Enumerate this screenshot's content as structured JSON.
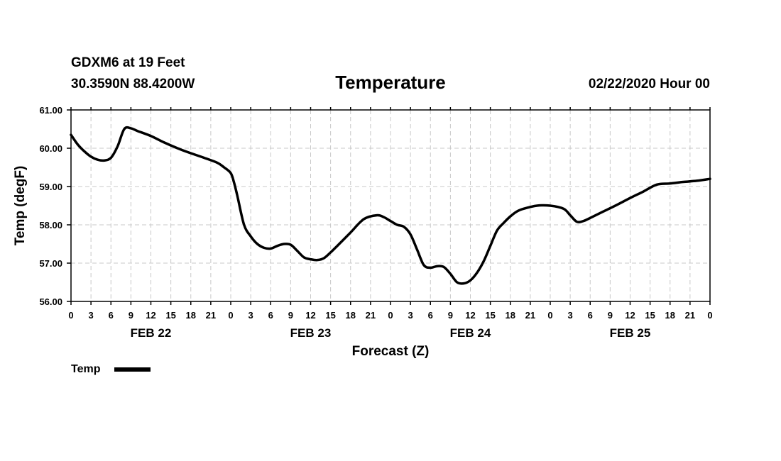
{
  "header": {
    "station": "GDXM6 at 19 Feet",
    "location": "30.3590N 88.4200W",
    "issued": "02/22/2020 Hour 00"
  },
  "chart_data": {
    "type": "line",
    "title": "Temperature",
    "xlabel": "Forecast (Z)",
    "ylabel": "Temp (degF)",
    "ylim": [
      56,
      61
    ],
    "yticks": [
      "56.00",
      "57.00",
      "58.00",
      "59.00",
      "60.00",
      "61.00"
    ],
    "xlim": [
      0,
      96
    ],
    "xtick_hours": [
      0,
      3,
      6,
      9,
      12,
      15,
      18,
      21,
      24,
      27,
      30,
      33,
      36,
      39,
      42,
      45,
      48,
      51,
      54,
      57,
      60,
      63,
      66,
      69,
      72,
      75,
      78,
      81,
      84,
      87,
      90,
      93,
      96
    ],
    "xtick_labels": [
      "0",
      "3",
      "6",
      "9",
      "12",
      "15",
      "18",
      "21",
      "0",
      "3",
      "6",
      "9",
      "12",
      "15",
      "18",
      "21",
      "0",
      "3",
      "6",
      "9",
      "12",
      "15",
      "18",
      "21",
      "0",
      "3",
      "6",
      "9",
      "12",
      "15",
      "18",
      "21",
      "0"
    ],
    "day_labels": [
      {
        "label": "FEB 22",
        "hour": 12
      },
      {
        "label": "FEB 23",
        "hour": 36
      },
      {
        "label": "FEB 24",
        "hour": 60
      },
      {
        "label": "FEB 25",
        "hour": 84
      }
    ],
    "grid": true,
    "legend_position": "bottom-left",
    "series": [
      {
        "name": "Temp",
        "color": "#000000",
        "x": [
          0,
          1,
          2,
          3,
          4,
          5,
          6,
          7,
          8,
          9,
          10,
          12,
          14,
          16,
          18,
          20,
          22,
          23,
          24,
          24.5,
          25,
          26,
          27,
          28,
          29,
          30,
          31,
          32,
          33,
          34,
          35,
          36,
          37,
          38,
          39,
          40,
          42,
          44,
          46,
          47,
          48,
          49,
          50,
          51,
          52,
          53,
          54,
          55,
          56,
          57,
          58,
          59,
          60,
          61,
          62,
          63,
          64,
          65,
          66,
          67,
          68,
          70,
          72,
          74,
          75,
          76,
          77,
          78,
          80,
          82,
          84,
          86,
          88,
          90,
          92,
          94,
          96
        ],
        "values": [
          60.35,
          60.1,
          59.92,
          59.78,
          59.7,
          59.68,
          59.75,
          60.05,
          60.5,
          60.52,
          60.45,
          60.32,
          60.15,
          60.0,
          59.87,
          59.75,
          59.62,
          59.5,
          59.35,
          59.1,
          58.75,
          58.0,
          57.7,
          57.5,
          57.4,
          57.38,
          57.45,
          57.5,
          57.48,
          57.32,
          57.15,
          57.1,
          57.08,
          57.13,
          57.28,
          57.45,
          57.8,
          58.15,
          58.25,
          58.2,
          58.1,
          58.0,
          57.95,
          57.75,
          57.35,
          56.95,
          56.88,
          56.92,
          56.9,
          56.72,
          56.5,
          56.47,
          56.55,
          56.75,
          57.05,
          57.45,
          57.85,
          58.05,
          58.22,
          58.35,
          58.42,
          58.5,
          58.5,
          58.42,
          58.25,
          58.08,
          58.1,
          58.18,
          58.35,
          58.52,
          58.7,
          58.87,
          59.05,
          59.08,
          59.12,
          59.15,
          59.2
        ]
      }
    ]
  },
  "legend": {
    "label": "Temp",
    "color": "#000000"
  }
}
